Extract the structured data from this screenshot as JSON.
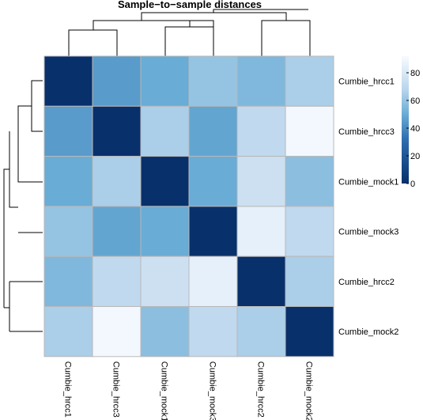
{
  "chart_data": {
    "type": "heatmap",
    "title": "Sample−to−sample distances",
    "row_labels": [
      "Cumbie_hrcc1",
      "Cumbie_hrcc3",
      "Cumbie_mock1",
      "Cumbie_mock3",
      "Cumbie_hrcc2",
      "Cumbie_mock2"
    ],
    "col_labels": [
      "Cumbie_hrcc1",
      "Cumbie_hrcc3",
      "Cumbie_mock1",
      "Cumbie_mock3",
      "Cumbie_hrcc2",
      "Cumbie_mock2"
    ],
    "values": [
      [
        0,
        45,
        50,
        60,
        55,
        65
      ],
      [
        45,
        0,
        65,
        48,
        70,
        90
      ],
      [
        50,
        65,
        0,
        50,
        75,
        58
      ],
      [
        60,
        48,
        50,
        0,
        85,
        70
      ],
      [
        55,
        70,
        75,
        85,
        0,
        65
      ],
      [
        65,
        90,
        58,
        70,
        65,
        0
      ]
    ],
    "colorbar": {
      "min": 0,
      "max": 92,
      "ticks": [
        0,
        20,
        40,
        60,
        80
      ],
      "low_color": "#08306b",
      "mid_color": "#6baed6",
      "high_color": "#f7fbff"
    },
    "col_dendrogram": {
      "order": [
        0,
        1,
        2,
        3,
        4,
        5
      ]
    },
    "row_dendrogram": {
      "order": [
        0,
        1,
        2,
        3,
        4,
        5
      ]
    }
  }
}
